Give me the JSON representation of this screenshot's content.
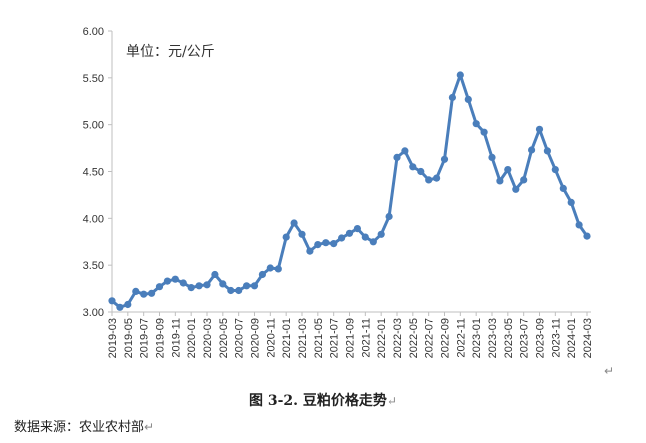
{
  "chart_data": {
    "type": "line",
    "title": "",
    "unit_label": "单位：元/公斤",
    "xlabel": "",
    "ylabel": "",
    "ylim": [
      3.0,
      6.0
    ],
    "yticks": [
      "3.00",
      "3.50",
      "4.00",
      "4.50",
      "5.00",
      "5.50",
      "6.00"
    ],
    "grid": false,
    "legend": "none",
    "x": [
      "2019-03",
      "2019-04",
      "2019-05",
      "2019-06",
      "2019-07",
      "2019-08",
      "2019-09",
      "2019-10",
      "2019-11",
      "2019-12",
      "2020-01",
      "2020-02",
      "2020-03",
      "2020-04",
      "2020-05",
      "2020-06",
      "2020-07",
      "2020-08",
      "2020-09",
      "2020-10",
      "2020-11",
      "2020-12",
      "2021-01",
      "2021-02",
      "2021-03",
      "2021-04",
      "2021-05",
      "2021-06",
      "2021-07",
      "2021-08",
      "2021-09",
      "2021-10",
      "2021-11",
      "2021-12",
      "2022-01",
      "2022-02",
      "2022-03",
      "2022-04",
      "2022-05",
      "2022-06",
      "2022-07",
      "2022-08",
      "2022-09",
      "2022-10",
      "2022-11",
      "2022-12",
      "2023-01",
      "2023-02",
      "2023-03",
      "2023-04",
      "2023-05",
      "2023-06",
      "2023-07",
      "2023-08",
      "2023-09",
      "2023-10",
      "2023-11",
      "2023-12",
      "2024-01",
      "2024-02",
      "2024-03"
    ],
    "xticks": [
      "2019-03",
      "2019-05",
      "2019-07",
      "2019-09",
      "2019-11",
      "2020-01",
      "2020-03",
      "2020-05",
      "2020-07",
      "2020-09",
      "2020-11",
      "2021-01",
      "2021-03",
      "2021-05",
      "2021-07",
      "2021-09",
      "2021-11",
      "2022-01",
      "2022-03",
      "2022-05",
      "2022-07",
      "2022-09",
      "2022-11",
      "2023-01",
      "2023-03",
      "2023-05",
      "2023-07",
      "2023-09",
      "2023-11",
      "2024-01",
      "2024-03"
    ],
    "series": [
      {
        "name": "",
        "color": "#4a7ebb",
        "values": [
          3.12,
          3.05,
          3.08,
          3.22,
          3.19,
          3.2,
          3.27,
          3.33,
          3.35,
          3.31,
          3.26,
          3.28,
          3.29,
          3.4,
          3.3,
          3.23,
          3.23,
          3.28,
          3.28,
          3.4,
          3.47,
          3.46,
          3.8,
          3.95,
          3.83,
          3.65,
          3.72,
          3.74,
          3.73,
          3.79,
          3.84,
          3.89,
          3.8,
          3.75,
          3.83,
          4.02,
          4.65,
          4.72,
          4.55,
          4.5,
          4.41,
          4.43,
          4.63,
          5.29,
          5.53,
          5.27,
          5.01,
          4.92,
          4.65,
          4.4,
          4.52,
          4.31,
          4.41,
          4.73,
          4.95,
          4.72,
          4.52,
          4.32,
          4.17,
          3.93,
          3.81
        ]
      }
    ]
  },
  "caption": {
    "text": "图 3-2. 豆粕价格走势"
  },
  "source": {
    "text": "数据来源：农业农村部"
  },
  "marks": {
    "return": "↵"
  }
}
